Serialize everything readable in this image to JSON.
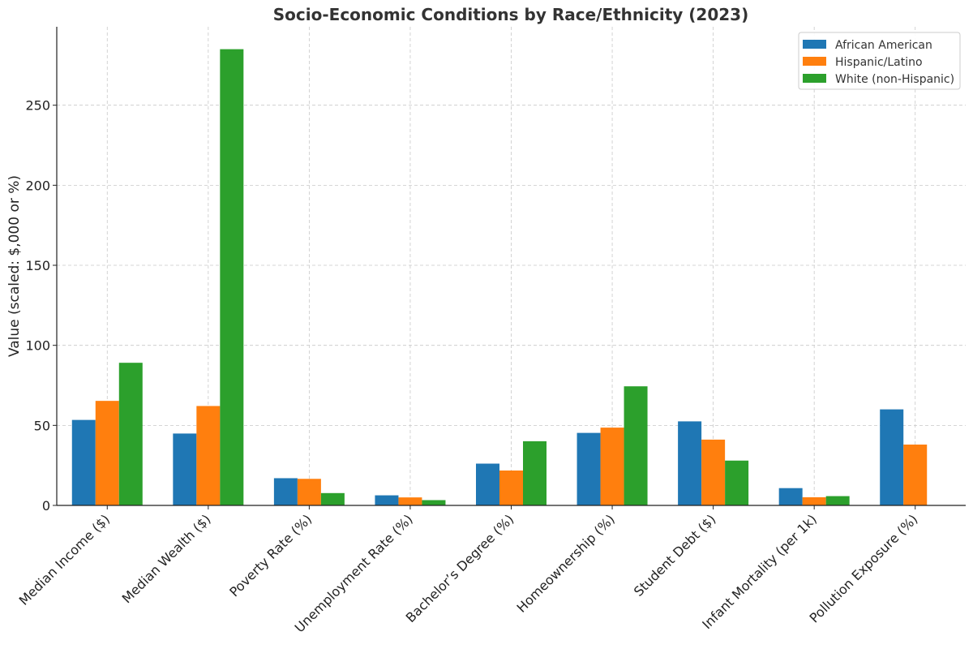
{
  "chart_data": {
    "type": "bar",
    "title": "Socio-Economic Conditions by Race/Ethnicity (2023)",
    "xlabel": "",
    "ylabel": "Value (scaled: $,000 or %)",
    "ylim": [
      0,
      299
    ],
    "yticks": [
      0,
      50,
      100,
      150,
      200,
      250
    ],
    "grid": true,
    "legend_position": "top-right",
    "categories": [
      "Median Income ($)",
      "Median Wealth ($)",
      "Poverty Rate (%)",
      "Unemployment Rate (%)",
      "Bachelor’s Degree (%)",
      "Homeownership (%)",
      "Student Debt ($)",
      "Infant Mortality (per 1k)",
      "Pollution Exposure (%)"
    ],
    "series": [
      {
        "name": "African American",
        "color": "#1f77b4",
        "values": [
          53.4,
          44.9,
          17,
          6.3,
          26.1,
          45.3,
          52.5,
          10.8,
          60
        ]
      },
      {
        "name": "Hispanic/Latino",
        "color": "#ff7f0e",
        "values": [
          65.3,
          62.1,
          16.6,
          5,
          21.8,
          48.6,
          41.1,
          5.1,
          38
        ]
      },
      {
        "name": "White (non-Hispanic)",
        "color": "#2ca02c",
        "values": [
          89.1,
          285,
          7.7,
          3.3,
          40.1,
          74.4,
          28,
          5.8,
          null
        ]
      }
    ]
  }
}
